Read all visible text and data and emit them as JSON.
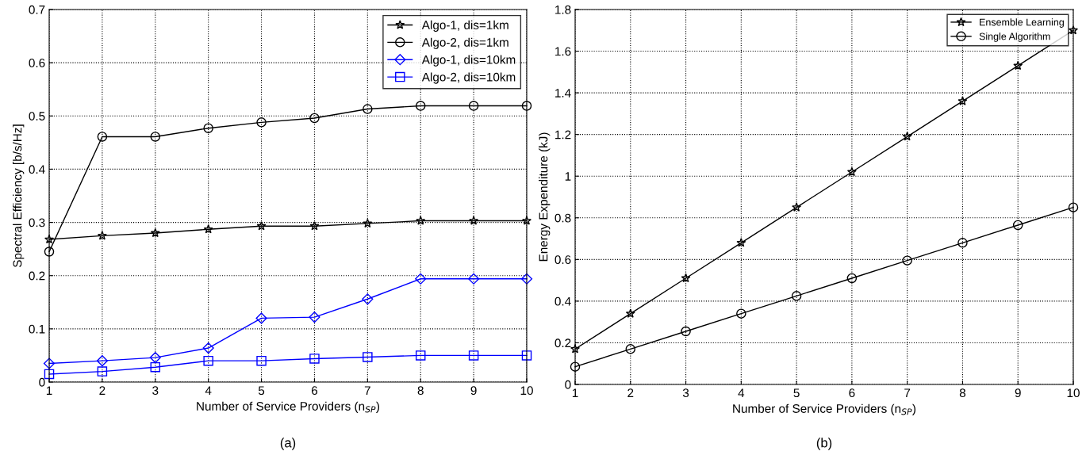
{
  "chart_data": [
    {
      "type": "line",
      "xlabel": "Number of Service Providers (n$_{SP}$)",
      "ylabel": "Spectral Efficiency [b/s/Hz]",
      "annotations": [
        "(a)"
      ],
      "x": [
        1,
        2,
        3,
        4,
        5,
        6,
        7,
        8,
        9,
        10
      ],
      "xlim": [
        1,
        10
      ],
      "xticks": [
        1,
        2,
        3,
        4,
        5,
        6,
        7,
        8,
        9,
        10
      ],
      "ylim": [
        0,
        0.7
      ],
      "yticks": [
        0,
        0.1,
        0.2,
        0.3,
        0.4,
        0.5,
        0.6,
        0.7
      ],
      "grid": true,
      "legend": "top right",
      "line_style": "solid",
      "series": [
        {
          "name": "Algo-1, dis=1km",
          "color": "#000000",
          "marker": "star",
          "values": [
            0.268,
            0.275,
            0.28,
            0.287,
            0.293,
            0.293,
            0.298,
            0.303,
            0.303,
            0.303
          ]
        },
        {
          "name": "Algo-2, dis=1km",
          "color": "#000000",
          "marker": "circle",
          "values": [
            0.245,
            0.461,
            0.461,
            0.477,
            0.488,
            0.496,
            0.513,
            0.519,
            0.519,
            0.519
          ]
        },
        {
          "name": "Algo-1, dis=10km",
          "color": "#0000ff",
          "marker": "diamond",
          "values": [
            0.035,
            0.04,
            0.046,
            0.064,
            0.12,
            0.122,
            0.156,
            0.194,
            0.194,
            0.194
          ]
        },
        {
          "name": "Algo-2, dis=10km",
          "color": "#0000ff",
          "marker": "square",
          "values": [
            0.015,
            0.02,
            0.028,
            0.04,
            0.04,
            0.044,
            0.047,
            0.05,
            0.05,
            0.05
          ]
        }
      ]
    },
    {
      "type": "line",
      "xlabel": "Number of Service Providers (n$_{SP}$)",
      "ylabel": "Energy Expenditure (kJ)",
      "annotations": [
        "(b)"
      ],
      "x": [
        1,
        2,
        3,
        4,
        5,
        6,
        7,
        8,
        9,
        10
      ],
      "xlim": [
        1,
        10
      ],
      "xticks": [
        1,
        2,
        3,
        4,
        5,
        6,
        7,
        8,
        9,
        10
      ],
      "ylim": [
        0,
        1.8
      ],
      "yticks": [
        0,
        0.2,
        0.4,
        0.6,
        0.8,
        1,
        1.2,
        1.4,
        1.6,
        1.8
      ],
      "grid": true,
      "legend": "top right",
      "line_style": "solid",
      "series": [
        {
          "name": "Ensemble Learning",
          "color": "#000000",
          "marker": "star",
          "values": [
            0.17,
            0.34,
            0.51,
            0.68,
            0.85,
            1.02,
            1.19,
            1.36,
            1.53,
            1.7
          ]
        },
        {
          "name": "Single Algorithm",
          "color": "#000000",
          "marker": "circle",
          "values": [
            0.085,
            0.17,
            0.255,
            0.34,
            0.425,
            0.51,
            0.595,
            0.68,
            0.765,
            0.85
          ]
        }
      ]
    }
  ]
}
